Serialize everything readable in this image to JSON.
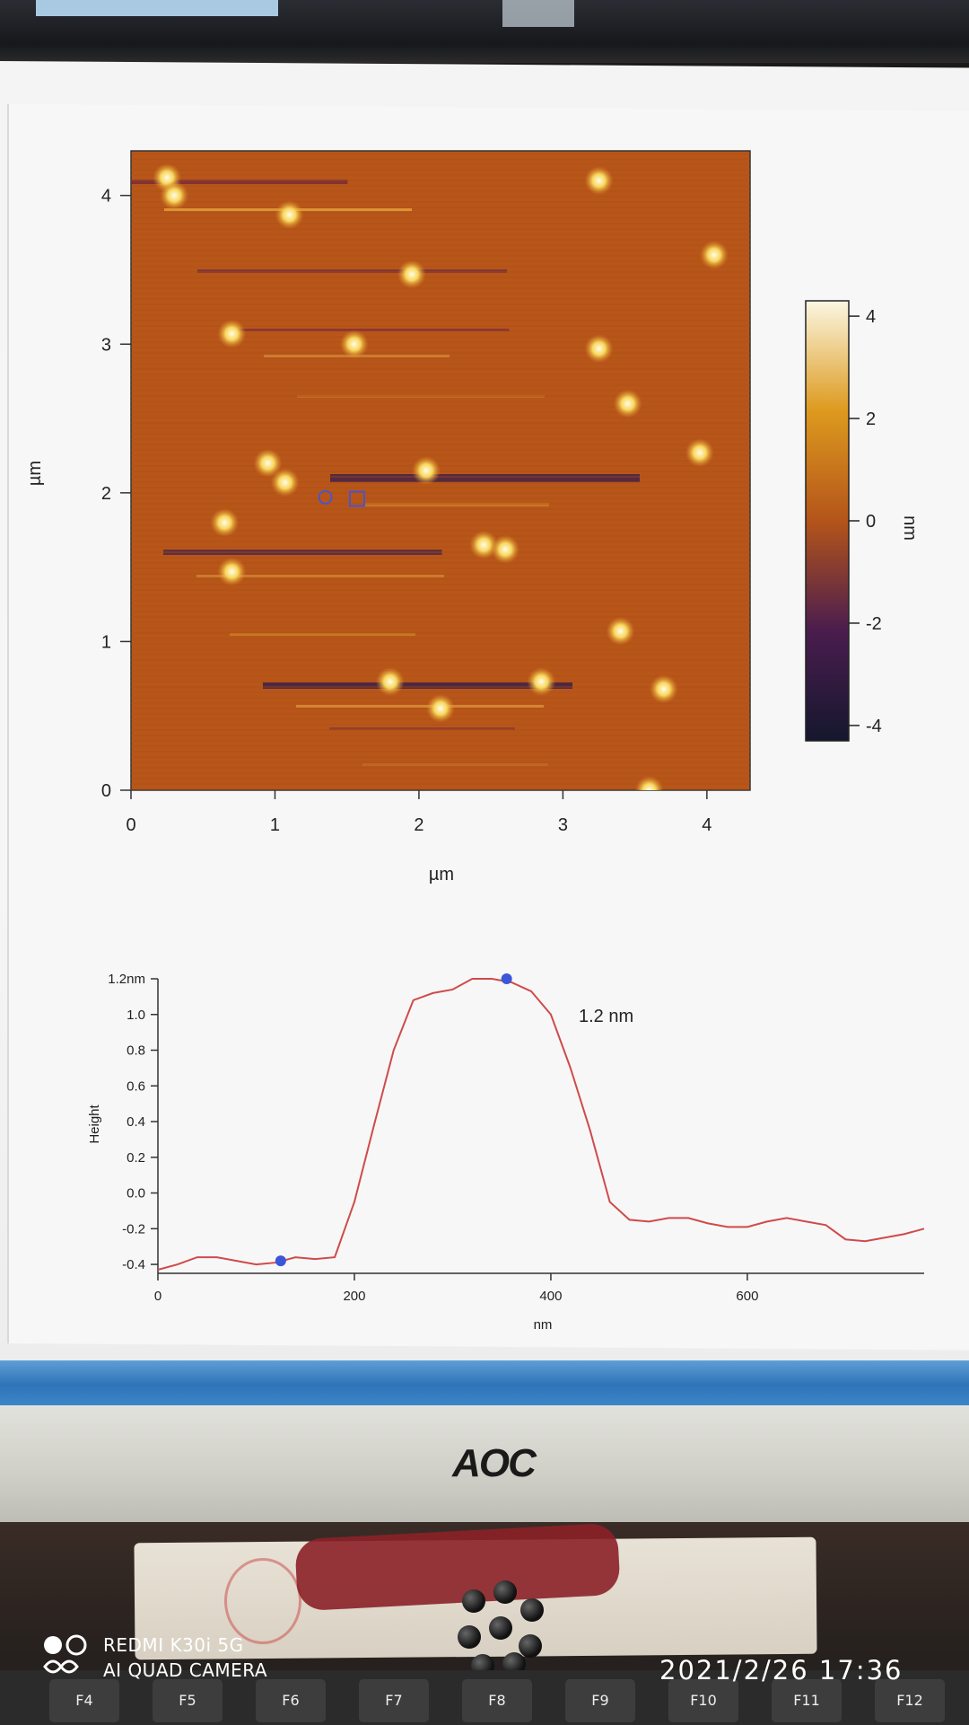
{
  "chart_data": [
    {
      "type": "heatmap",
      "xlabel": "µm",
      "ylabel": "µm",
      "xlim": [
        0,
        4.3
      ],
      "ylim": [
        0,
        4.3
      ],
      "x_ticks": [
        "0",
        "1",
        "2",
        "3",
        "4"
      ],
      "y_ticks": [
        "0",
        "1",
        "2",
        "3",
        "4"
      ],
      "colorbar": {
        "label": "nm",
        "range": [
          -4.3,
          4.3
        ],
        "ticks": [
          "4",
          "2",
          "0",
          "-2",
          "-4"
        ]
      },
      "particles": [
        {
          "x": 0.25,
          "y": 4.12
        },
        {
          "x": 0.3,
          "y": 4.0
        },
        {
          "x": 1.1,
          "y": 3.87
        },
        {
          "x": 3.25,
          "y": 4.1
        },
        {
          "x": 1.95,
          "y": 3.47
        },
        {
          "x": 0.7,
          "y": 3.07
        },
        {
          "x": 1.55,
          "y": 3.0
        },
        {
          "x": 3.25,
          "y": 2.97
        },
        {
          "x": 4.05,
          "y": 3.6
        },
        {
          "x": 3.45,
          "y": 2.6
        },
        {
          "x": 3.95,
          "y": 2.27
        },
        {
          "x": 0.95,
          "y": 2.2
        },
        {
          "x": 1.07,
          "y": 2.07
        },
        {
          "x": 2.05,
          "y": 2.15
        },
        {
          "x": 0.65,
          "y": 1.8
        },
        {
          "x": 2.45,
          "y": 1.65
        },
        {
          "x": 2.6,
          "y": 1.62
        },
        {
          "x": 0.7,
          "y": 1.47
        },
        {
          "x": 3.4,
          "y": 1.07
        },
        {
          "x": 1.8,
          "y": 0.73
        },
        {
          "x": 2.85,
          "y": 0.73
        },
        {
          "x": 3.7,
          "y": 0.68
        },
        {
          "x": 2.15,
          "y": 0.55
        },
        {
          "x": 3.6,
          "y": 0.0
        }
      ],
      "markers": [
        {
          "x": 1.35,
          "y": 1.97,
          "shape": "circle"
        },
        {
          "x": 1.57,
          "y": 1.96,
          "shape": "square"
        }
      ]
    },
    {
      "type": "line",
      "xlabel": "nm",
      "ylabel": "Height",
      "xlim": [
        0,
        780
      ],
      "ylim": [
        -0.45,
        1.2
      ],
      "x_ticks": [
        "0",
        "200",
        "400",
        "600"
      ],
      "y_ticks": [
        "1.2nm",
        "1.0",
        "0.8",
        "0.6",
        "0.4",
        "0.2",
        "0.0",
        "-0.2",
        "-0.4"
      ],
      "annotation": "1.2 nm",
      "line_color": "#d04a4a",
      "series": [
        {
          "x": [
            0,
            20,
            40,
            60,
            80,
            100,
            120,
            140,
            160,
            180,
            200,
            220,
            240,
            260,
            280,
            300,
            320,
            340,
            360,
            380,
            400,
            420,
            440,
            460,
            480,
            500,
            520,
            540,
            560,
            580,
            600,
            620,
            640,
            660,
            680,
            700,
            720,
            740,
            760,
            780
          ],
          "y": [
            -0.43,
            -0.4,
            -0.36,
            -0.36,
            -0.38,
            -0.4,
            -0.39,
            -0.36,
            -0.37,
            -0.36,
            -0.05,
            0.38,
            0.8,
            1.08,
            1.12,
            1.14,
            1.2,
            1.2,
            1.18,
            1.13,
            1.0,
            0.7,
            0.35,
            -0.05,
            -0.15,
            -0.16,
            -0.14,
            -0.14,
            -0.17,
            -0.19,
            -0.19,
            -0.16,
            -0.14,
            -0.16,
            -0.18,
            -0.26,
            -0.27,
            -0.25,
            -0.23,
            -0.2
          ]
        }
      ],
      "markers": [
        {
          "x": 125,
          "y": -0.38
        },
        {
          "x": 355,
          "y": 1.2
        }
      ]
    }
  ],
  "monitor_brand": "AOC",
  "watermark": {
    "line1": "REDMI K30i 5G",
    "line2": "AI QUAD CAMERA"
  },
  "timestamp": "2021/2/26  17:36",
  "keys": [
    "F4",
    "F5",
    "F6",
    "F7",
    "F8",
    "F9",
    "F10",
    "F11",
    "F12"
  ]
}
